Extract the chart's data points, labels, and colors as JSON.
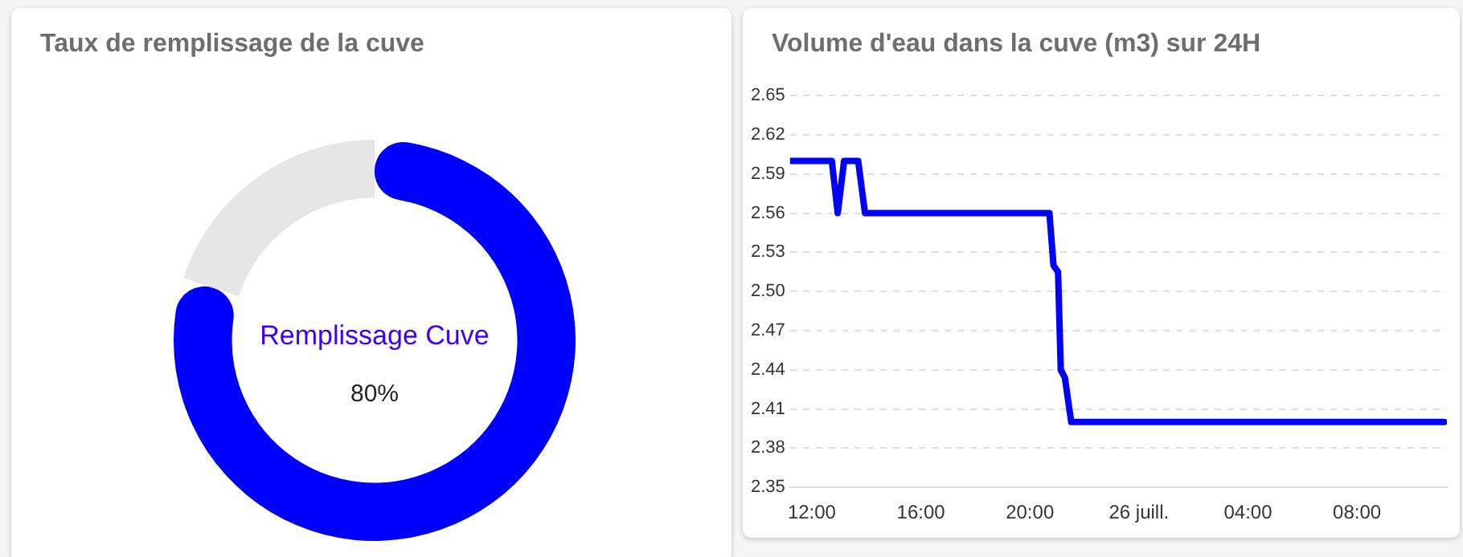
{
  "chart_data": [
    {
      "type": "donut",
      "title": "Taux de remplissage de la cuve",
      "categories": [
        null,
        null
      ],
      "values": [
        80,
        20
      ],
      "colors": [
        "#0000ff",
        "#e6e6e6"
      ],
      "annotations": [
        "Remplissage Cuve",
        "80%"
      ],
      "legend": false
    },
    {
      "type": "line",
      "title": "Volume d'eau dans la cuve (m3) sur 24H",
      "x": [
        "--07-25T11:12",
        "--07-25T12:44",
        "--07-25T12:57",
        "--07-25T13:11",
        "--07-25T13:42",
        "--07-25T13:57",
        "--07-25T20:43",
        "--07-25T20:52",
        "--07-25T21:02",
        "--07-25T21:08",
        "--07-25T21:17",
        "--07-25T21:31",
        "--07-26T11:12"
      ],
      "series": [
        {
          "color": "#0000ff",
          "values": [
            2.6,
            2.6,
            2.56,
            2.6,
            2.6,
            2.56,
            2.56,
            2.52,
            2.515,
            2.44,
            2.434,
            2.4,
            2.4
          ]
        }
      ],
      "xlim": [
        "--07-25T11:12",
        "--07-26T11:18"
      ],
      "xticks": [
        {
          "value": "--07-25T12:00",
          "label": "12:00"
        },
        {
          "value": "--07-25T16:00",
          "label": "16:00"
        },
        {
          "value": "--07-25T20:00",
          "label": "20:00"
        },
        {
          "value": "--07-26",
          "label": "26 juill."
        },
        {
          "value": "--07-26T04:00",
          "label": "04:00"
        },
        {
          "value": "--07-26T08:00",
          "label": "08:00"
        }
      ],
      "ylim": [
        2.35,
        2.65
      ],
      "yticks": [
        2.35,
        2.38,
        2.41,
        2.44,
        2.47,
        {
          "value": 2.5,
          "label": "2.50"
        },
        2.53,
        2.56,
        2.59,
        2.62,
        2.65
      ],
      "grid": "y",
      "legend": false,
      "marker": "none",
      "line_style": "solid"
    }
  ]
}
